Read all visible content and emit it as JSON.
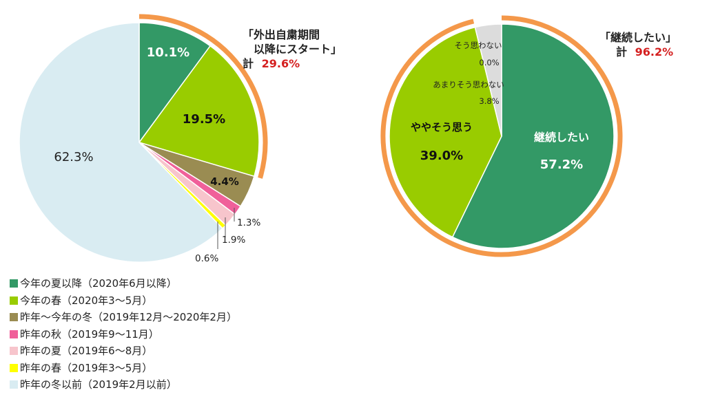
{
  "colors": {
    "accent_arc": "#f4984a",
    "highlight_red": "#d41f1f"
  },
  "chart_data": [
    {
      "type": "pie",
      "legend_position": "bottom-left",
      "series": [
        {
          "name": "今年の夏以降（2020年6月以降）",
          "value": 10.1,
          "label": "10.1%",
          "color": "#339966"
        },
        {
          "name": "今年の春（2020年3～5月）",
          "value": 19.5,
          "label": "19.5%",
          "color": "#99cc00"
        },
        {
          "name": "昨年～今年の冬（2019年12月～2020年2月）",
          "value": 4.4,
          "label": "4.4%",
          "color": "#9a8c52"
        },
        {
          "name": "昨年の秋（2019年9～11月）",
          "value": 1.3,
          "label": "1.3%",
          "color": "#f0609a"
        },
        {
          "name": "昨年の夏（2019年6～8月）",
          "value": 1.9,
          "label": "1.9%",
          "color": "#f7c5cc"
        },
        {
          "name": "昨年の春（2019年3～5月）",
          "value": 0.6,
          "label": "0.6%",
          "color": "#ffff00"
        },
        {
          "name": "昨年の冬以前（2019年2月以前）",
          "value": 62.3,
          "label": "62.3%",
          "color": "#d9ecf2"
        }
      ],
      "highlight": {
        "label_line1": "「外出自粛期間",
        "label_line2": "以降にスタート」",
        "total_prefix": "計",
        "total_value": "29.6%"
      }
    },
    {
      "type": "pie",
      "series": [
        {
          "name": "継続したい",
          "value": 57.2,
          "label": "57.2%",
          "color": "#339966"
        },
        {
          "name": "ややそう思う",
          "value": 39.0,
          "label": "39.0%",
          "color": "#99cc00"
        },
        {
          "name": "あまりそう思わない",
          "value": 3.8,
          "label": "3.8%",
          "color": "#dcdcdc"
        },
        {
          "name": "そう思わない",
          "value": 0.0,
          "label": "0.0%",
          "color": "#bbbbbb"
        }
      ],
      "highlight": {
        "label": "「継続したい」",
        "total_prefix": "計",
        "total_value": "96.2%"
      }
    }
  ]
}
